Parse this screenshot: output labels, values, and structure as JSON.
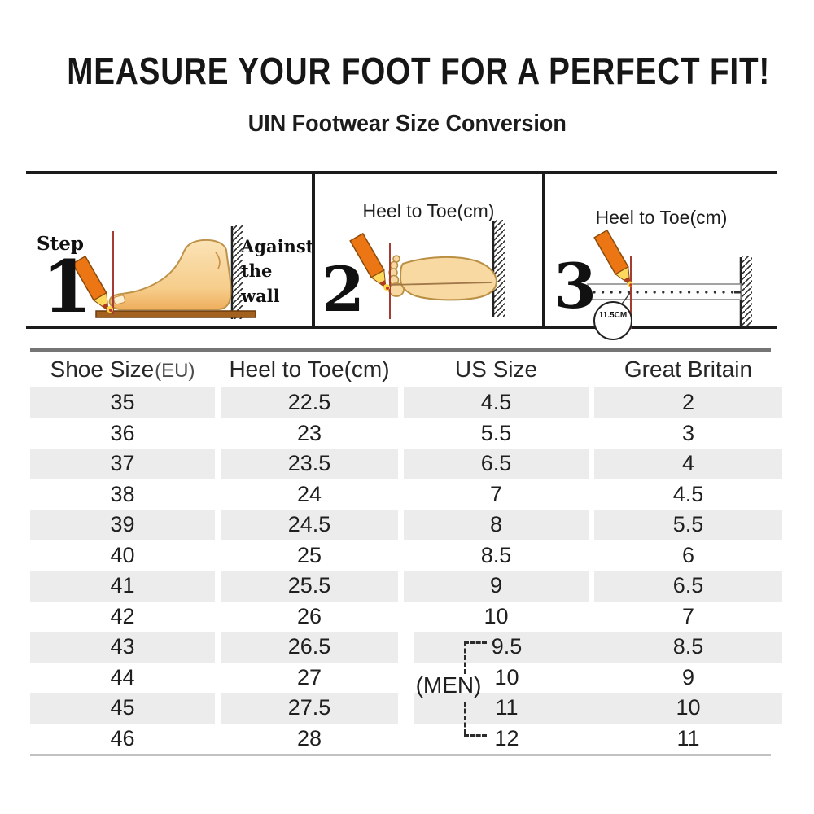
{
  "title": "MEASURE YOUR FOOT FOR A PERFECT FIT!",
  "subtitle": "UIN Footwear Size Conversion",
  "steps": {
    "step1": {
      "label": "Step",
      "number": "1",
      "annotation_line1": "Against",
      "annotation_line2": "the wall"
    },
    "step2": {
      "number": "2",
      "caption": "Heel to Toe(cm)"
    },
    "step3": {
      "number": "3",
      "caption": "Heel to Toe(cm)",
      "ruler_reading": "11.5CM"
    }
  },
  "table": {
    "header": {
      "col1_main": "Shoe Size",
      "col1_suffix": "(EU)",
      "col2": "Heel to Toe(cm)",
      "col3": "US Size",
      "col4": "Great Britain"
    },
    "rows": [
      [
        "35",
        "22.5",
        "4.5",
        "2"
      ],
      [
        "36",
        "23",
        "5.5",
        "3"
      ],
      [
        "37",
        "23.5",
        "6.5",
        "4"
      ],
      [
        "38",
        "24",
        "7",
        "4.5"
      ],
      [
        "39",
        "24.5",
        "8",
        "5.5"
      ],
      [
        "40",
        "25",
        "8.5",
        "6"
      ],
      [
        "41",
        "25.5",
        "9",
        "6.5"
      ],
      [
        "42",
        "26",
        "10",
        "7"
      ],
      [
        "43",
        "26.5",
        "9.5",
        "8.5"
      ],
      [
        "44",
        "27",
        "10",
        "9"
      ],
      [
        "45",
        "27.5",
        "11",
        "10"
      ],
      [
        "46",
        "28",
        "12",
        "11"
      ]
    ],
    "men_annotation": "(MEN)",
    "men_bracket_range": [
      "9.5",
      "12"
    ]
  },
  "colors": {
    "row_shade": "#ECECEC",
    "box_border": "#1b1b1b",
    "pencil_orange": "#EC7614",
    "pencil_wood": "#FFD95E",
    "foot_peach": "#F9D8A0",
    "foot_outline": "#BE9248",
    "floor_brown": "#A2611F",
    "guide_line_red": "#A43C31",
    "table_top_rule": "#757575",
    "table_bottom_rule": "#C2C2C2"
  }
}
